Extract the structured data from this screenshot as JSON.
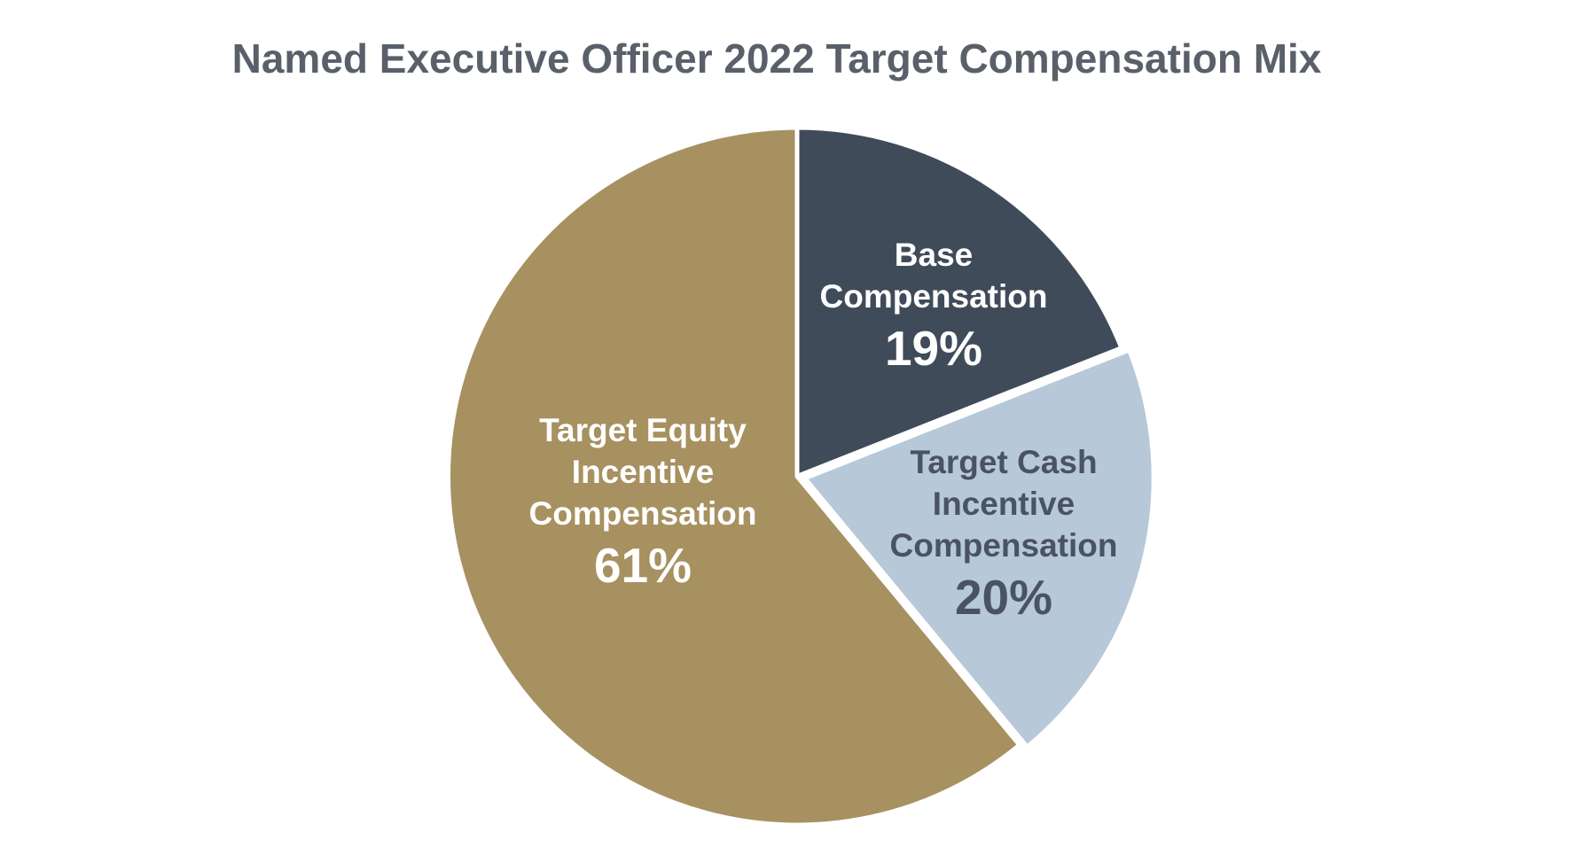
{
  "page": {
    "background_color": "#FFFFFF"
  },
  "title": {
    "text": "Named Executive Officer 2022 Target Compensation Mix",
    "color": "#5A606A"
  },
  "chart_data": {
    "type": "pie",
    "title": "Named Executive Officer 2022 Target Compensation Mix",
    "start_angle_deg": 0,
    "direction": "clockwise",
    "legend": "none",
    "separator_color": "#FFFFFF",
    "slices": [
      {
        "id": "base-compensation",
        "label": "Base Compensation",
        "label_lines": [
          "Base",
          "Compensation"
        ],
        "percent_label": "19%",
        "value": 19,
        "color": "#404B5A",
        "text_color": "#FFFFFF",
        "exploded": false
      },
      {
        "id": "target-cash-incentive-compensation",
        "label": "Target Cash Incentive Compensation",
        "label_lines": [
          "Target Cash",
          "Incentive",
          "Compensation"
        ],
        "percent_label": "20%",
        "value": 20,
        "color": "#B7C8D8",
        "text_color": "#4A5361",
        "exploded": true
      },
      {
        "id": "target-equity-incentive-compensation",
        "label": "Target Equity Incentive Compensation",
        "label_lines": [
          "Target Equity",
          "Incentive",
          "Compensation"
        ],
        "percent_label": "61%",
        "value": 61,
        "color": "#A79161",
        "text_color": "#FFFFFF",
        "exploded": false
      }
    ]
  }
}
